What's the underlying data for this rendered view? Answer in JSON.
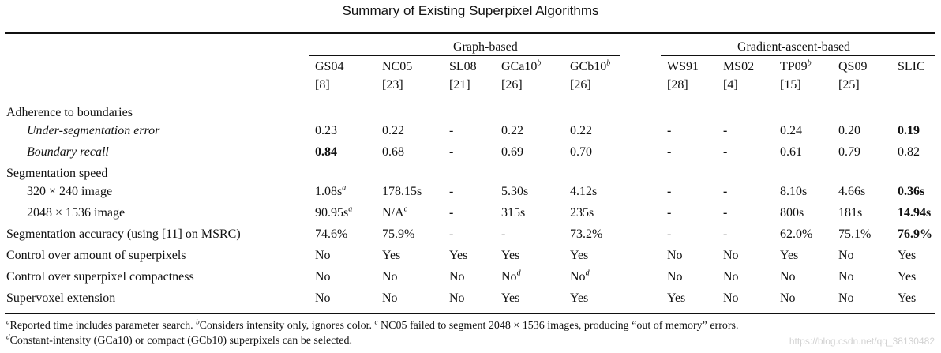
{
  "title": "Summary of Existing Superpixel Algorithms",
  "groups": {
    "graph": "Graph-based",
    "gradient": "Gradient-ascent-based"
  },
  "columns": [
    {
      "name": "GS04",
      "sup": "",
      "ref": "[8]"
    },
    {
      "name": "NC05",
      "sup": "",
      "ref": "[23]"
    },
    {
      "name": "SL08",
      "sup": "",
      "ref": "[21]"
    },
    {
      "name": "GCa10",
      "sup": "b",
      "ref": "[26]"
    },
    {
      "name": "GCb10",
      "sup": "b",
      "ref": "[26]"
    },
    {
      "name": "WS91",
      "sup": "",
      "ref": "[28]"
    },
    {
      "name": "MS02",
      "sup": "",
      "ref": "[4]"
    },
    {
      "name": "TP09",
      "sup": "b",
      "ref": "[15]"
    },
    {
      "name": "QS09",
      "sup": "",
      "ref": "[25]"
    },
    {
      "name": "SLIC",
      "sup": "",
      "ref": ""
    }
  ],
  "rows": [
    {
      "label": "Adherence to boundaries",
      "type": "section",
      "cells": []
    },
    {
      "label": "Under-segmentation error",
      "type": "sub-italic",
      "cells": [
        "0.23",
        "0.22",
        "-",
        "0.22",
        "0.22",
        "-",
        "-",
        "0.24",
        "0.20",
        "0.19"
      ],
      "bold": [
        false,
        false,
        false,
        false,
        false,
        true,
        true,
        false,
        false,
        true
      ]
    },
    {
      "label": "Boundary recall",
      "type": "sub-italic",
      "cells": [
        "0.84",
        "0.68",
        "-",
        "0.69",
        "0.70",
        "-",
        "-",
        "0.61",
        "0.79",
        "0.82"
      ],
      "bold": [
        true,
        false,
        false,
        false,
        false,
        true,
        true,
        false,
        false,
        false
      ]
    },
    {
      "label": "Segmentation speed",
      "type": "section",
      "cells": []
    },
    {
      "label": "320 × 240 image",
      "type": "sub",
      "cells": [
        "1.08s",
        "178.15s",
        "-",
        "5.30s",
        "4.12s",
        "-",
        "-",
        "8.10s",
        "4.66s",
        "0.36s"
      ],
      "sups": [
        "a",
        "",
        "",
        "",
        "",
        "",
        "",
        "",
        "",
        ""
      ],
      "bold": [
        false,
        false,
        false,
        false,
        false,
        true,
        true,
        false,
        false,
        true
      ]
    },
    {
      "label": "2048 × 1536 image",
      "type": "sub",
      "cells": [
        "90.95s",
        "N/A",
        "-",
        "315s",
        "235s",
        "-",
        "-",
        "800s",
        "181s",
        "14.94s"
      ],
      "sups": [
        "a",
        "c",
        "",
        "",
        "",
        "",
        "",
        "",
        "",
        ""
      ],
      "bold": [
        false,
        false,
        true,
        false,
        false,
        true,
        true,
        false,
        false,
        true
      ]
    },
    {
      "label": "Segmentation accuracy (using [11] on MSRC)",
      "type": "main",
      "cells": [
        "74.6%",
        "75.9%",
        "-",
        "-",
        "73.2%",
        "-",
        "-",
        "62.0%",
        "75.1%",
        "76.9%"
      ],
      "bold": [
        false,
        false,
        false,
        false,
        false,
        false,
        false,
        false,
        false,
        true
      ]
    },
    {
      "label": "Control over amount of superpixels",
      "type": "main",
      "cells": [
        "No",
        "Yes",
        "Yes",
        "Yes",
        "Yes",
        "No",
        "No",
        "Yes",
        "No",
        "Yes"
      ]
    },
    {
      "label": "Control over superpixel compactness",
      "type": "main",
      "cells": [
        "No",
        "No",
        "No",
        "No",
        "No",
        "No",
        "No",
        "No",
        "No",
        "Yes"
      ],
      "sups": [
        "",
        "",
        "",
        "d",
        "d",
        "",
        "",
        "",
        "",
        ""
      ]
    },
    {
      "label": "Supervoxel extension",
      "type": "main",
      "cells": [
        "No",
        "No",
        "No",
        "Yes",
        "Yes",
        "Yes",
        "No",
        "No",
        "No",
        "Yes"
      ]
    }
  ],
  "footnotes": {
    "line1": [
      {
        "sup": "a",
        "text": "Reported time includes parameter search. "
      },
      {
        "sup": "b",
        "text": "Considers intensity only, ignores color. "
      },
      {
        "sup": "c",
        "text": " NC05 failed to segment 2048 × 1536 images, producing “out of memory” errors."
      }
    ],
    "line2": [
      {
        "sup": "d",
        "text": "Constant-intensity (GCa10) or compact (GCb10) superpixels can be selected."
      }
    ]
  },
  "watermark": "https://blog.csdn.net/qq_38130482"
}
